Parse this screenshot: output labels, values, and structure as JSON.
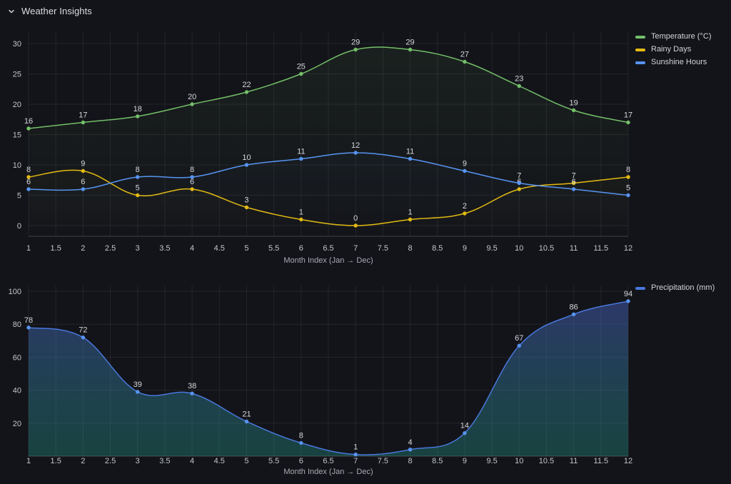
{
  "header": {
    "title": "Weather Insights"
  },
  "theme": {
    "background": "#131419",
    "grid_color": "rgba(255,255,255,0.07)",
    "axis_line_color": "rgba(255,255,255,0.20)",
    "tick_label_color": "#c3c5cc",
    "axis_title_color": "#a9abb3",
    "data_label_color": "#d4d6da",
    "title_color": "#dcdde2"
  },
  "chart_data": [
    {
      "type": "line",
      "x": [
        1,
        2,
        3,
        4,
        5,
        6,
        7,
        8,
        9,
        10,
        11,
        12
      ],
      "x_tick_labels": [
        "1",
        "1.5",
        "2",
        "2.5",
        "3",
        "3.5",
        "4",
        "4.5",
        "5",
        "5.5",
        "6",
        "6.5",
        "7",
        "7.5",
        "8",
        "8.5",
        "9",
        "9.5",
        "10",
        "10.5",
        "11",
        "11.5",
        "12"
      ],
      "y_ticks": [
        0,
        5,
        10,
        15,
        20,
        25,
        30
      ],
      "ylim": [
        -1.8,
        32.2
      ],
      "xlabel": "Month Index (Jan → Dec)",
      "ylabel": "",
      "grid": true,
      "legend_position": "top-right",
      "show_point_labels": true,
      "series": [
        {
          "name": "Temperature (°C)",
          "color": "#73bf69",
          "values": [
            16,
            17,
            18,
            20,
            22,
            25,
            29,
            29,
            27,
            23,
            19,
            17
          ]
        },
        {
          "name": "Rainy Days",
          "color": "#e3ba12",
          "values": [
            8,
            9,
            5,
            6,
            3,
            1,
            0,
            1,
            2,
            6,
            7,
            8
          ]
        },
        {
          "name": "Sunshine Hours",
          "color": "#5794f2",
          "values": [
            6,
            6,
            8,
            8,
            10,
            11,
            12,
            11,
            9,
            7,
            6,
            5
          ]
        }
      ]
    },
    {
      "type": "area",
      "x": [
        1,
        2,
        3,
        4,
        5,
        6,
        7,
        8,
        9,
        10,
        11,
        12
      ],
      "x_tick_labels": [
        "1",
        "1.5",
        "2",
        "2.5",
        "3",
        "3.5",
        "4",
        "4.5",
        "5",
        "5.5",
        "6",
        "6.5",
        "7",
        "7.5",
        "8",
        "8.5",
        "9",
        "9.5",
        "10",
        "10.5",
        "11",
        "11.5",
        "12"
      ],
      "y_ticks": [
        20,
        40,
        60,
        80,
        100
      ],
      "ylim": [
        0,
        103.5
      ],
      "xlabel": "Month Index (Jan → Dec)",
      "ylabel": "",
      "grid": true,
      "legend_position": "top-right",
      "show_point_labels": true,
      "series": [
        {
          "name": "Precipitation (mm)",
          "color": "#4878dd",
          "point_color": "#5794f2",
          "values": [
            78,
            72,
            39,
            38,
            21,
            8,
            1,
            4,
            14,
            67,
            86,
            94
          ],
          "fill_gradient_top": "rgba(82,94,212,0.45)",
          "fill_gradient_bottom": "rgba(38,186,166,0.28)"
        }
      ]
    }
  ]
}
